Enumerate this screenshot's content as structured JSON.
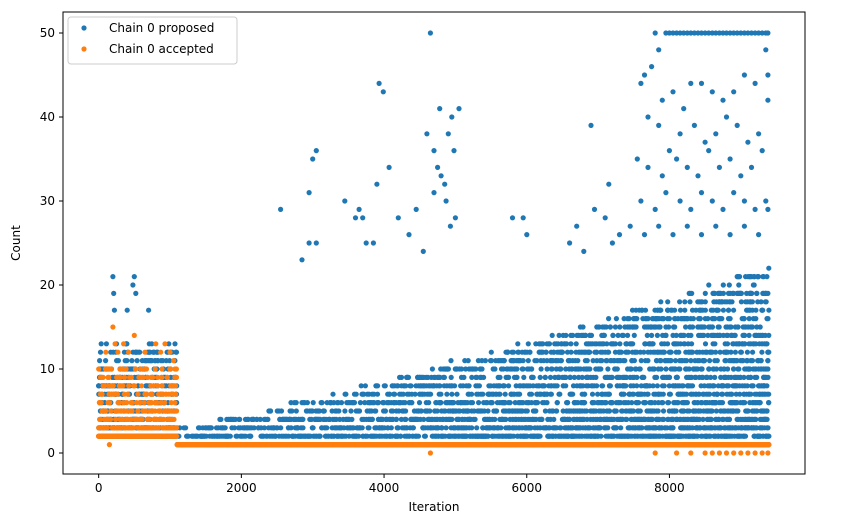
{
  "colors": {
    "proposed": "#1f77b4",
    "accepted": "#ff7f0e",
    "axis": "#000000",
    "legend_border": "#cccccc"
  },
  "chart_data": {
    "type": "scatter",
    "title": "",
    "xlabel": "Iteration",
    "ylabel": "Count",
    "xlim": [
      -500,
      9900
    ],
    "ylim": [
      -2.5,
      52.5
    ],
    "xticks": [
      0,
      2000,
      4000,
      6000,
      8000
    ],
    "yticks": [
      0,
      10,
      20,
      30,
      40,
      50
    ],
    "grid": false,
    "legend_position": "upper-left",
    "series": [
      {
        "name": "Chain 0 proposed",
        "color": "#1f77b4",
        "marker": "circle",
        "regions": [
          {
            "x_start": 0,
            "x_end": 1100,
            "base_min": 2,
            "base_max": 13
          },
          {
            "x_start": 1100,
            "x_end": 9400,
            "base_min": 1,
            "base_max_start": 3,
            "base_max_end": 22
          }
        ],
        "points": [
          [
            200,
            21
          ],
          [
            210,
            19
          ],
          [
            480,
            20
          ],
          [
            500,
            21
          ],
          [
            520,
            19
          ],
          [
            220,
            17
          ],
          [
            400,
            17
          ],
          [
            700,
            17
          ],
          [
            2550,
            29
          ],
          [
            2950,
            31
          ],
          [
            2950,
            25
          ],
          [
            3000,
            35
          ],
          [
            3050,
            36
          ],
          [
            3050,
            25
          ],
          [
            2850,
            23
          ],
          [
            3450,
            30
          ],
          [
            3600,
            28
          ],
          [
            3650,
            29
          ],
          [
            3700,
            28
          ],
          [
            3750,
            25
          ],
          [
            3850,
            25
          ],
          [
            3930,
            44
          ],
          [
            3990,
            43
          ],
          [
            4070,
            34
          ],
          [
            3900,
            32
          ],
          [
            4200,
            28
          ],
          [
            4350,
            26
          ],
          [
            4450,
            29
          ],
          [
            4550,
            24
          ],
          [
            4600,
            38
          ],
          [
            4650,
            50
          ],
          [
            4700,
            36
          ],
          [
            4750,
            34
          ],
          [
            4780,
            41
          ],
          [
            4800,
            33
          ],
          [
            4850,
            32
          ],
          [
            4900,
            38
          ],
          [
            4950,
            40
          ],
          [
            4980,
            36
          ],
          [
            5000,
            28
          ],
          [
            5050,
            41
          ],
          [
            4870,
            30
          ],
          [
            4930,
            27
          ],
          [
            4700,
            31
          ],
          [
            5800,
            28
          ],
          [
            5950,
            28
          ],
          [
            6000,
            26
          ],
          [
            6900,
            39
          ],
          [
            7150,
            32
          ],
          [
            7600,
            44
          ],
          [
            7650,
            45
          ],
          [
            7750,
            46
          ],
          [
            7800,
            50
          ],
          [
            7850,
            48
          ],
          [
            7950,
            50
          ],
          [
            8000,
            50
          ],
          [
            8050,
            50
          ],
          [
            8100,
            50
          ],
          [
            8150,
            50
          ],
          [
            8200,
            50
          ],
          [
            8250,
            50
          ],
          [
            8300,
            50
          ],
          [
            8350,
            50
          ],
          [
            8400,
            50
          ],
          [
            8450,
            50
          ],
          [
            8500,
            50
          ],
          [
            8550,
            50
          ],
          [
            8600,
            50
          ],
          [
            8650,
            50
          ],
          [
            8700,
            50
          ],
          [
            8750,
            50
          ],
          [
            8800,
            50
          ],
          [
            8850,
            50
          ],
          [
            8900,
            50
          ],
          [
            8950,
            50
          ],
          [
            9000,
            50
          ],
          [
            9050,
            50
          ],
          [
            9100,
            50
          ],
          [
            9150,
            50
          ],
          [
            9200,
            50
          ],
          [
            9250,
            50
          ],
          [
            9300,
            50
          ],
          [
            9350,
            50
          ],
          [
            9380,
            50
          ],
          [
            7900,
            42
          ],
          [
            8050,
            43
          ],
          [
            8200,
            41
          ],
          [
            8300,
            44
          ],
          [
            8450,
            44
          ],
          [
            8600,
            43
          ],
          [
            8750,
            42
          ],
          [
            8900,
            43
          ],
          [
            9050,
            45
          ],
          [
            9200,
            44
          ],
          [
            9350,
            48
          ],
          [
            9380,
            45
          ],
          [
            7700,
            40
          ],
          [
            7850,
            39
          ],
          [
            8000,
            36
          ],
          [
            8150,
            38
          ],
          [
            8350,
            39
          ],
          [
            8500,
            37
          ],
          [
            8650,
            38
          ],
          [
            8800,
            40
          ],
          [
            8950,
            39
          ],
          [
            9100,
            37
          ],
          [
            9250,
            38
          ],
          [
            9380,
            42
          ],
          [
            7550,
            35
          ],
          [
            7700,
            34
          ],
          [
            7900,
            33
          ],
          [
            8100,
            35
          ],
          [
            8250,
            34
          ],
          [
            8400,
            33
          ],
          [
            8550,
            36
          ],
          [
            8700,
            34
          ],
          [
            8850,
            35
          ],
          [
            9000,
            33
          ],
          [
            9150,
            34
          ],
          [
            9300,
            36
          ],
          [
            7600,
            30
          ],
          [
            7800,
            29
          ],
          [
            7950,
            31
          ],
          [
            8150,
            30
          ],
          [
            8300,
            29
          ],
          [
            8450,
            31
          ],
          [
            8600,
            30
          ],
          [
            8750,
            29
          ],
          [
            8900,
            31
          ],
          [
            9050,
            30
          ],
          [
            9200,
            29
          ],
          [
            9350,
            30
          ],
          [
            6700,
            27
          ],
          [
            6950,
            29
          ],
          [
            7100,
            28
          ],
          [
            7300,
            26
          ],
          [
            7450,
            27
          ],
          [
            7650,
            26
          ],
          [
            7850,
            27
          ],
          [
            8050,
            26
          ],
          [
            8250,
            27
          ],
          [
            8450,
            26
          ],
          [
            8650,
            27
          ],
          [
            8850,
            26
          ],
          [
            9050,
            27
          ],
          [
            9250,
            26
          ],
          [
            9380,
            29
          ],
          [
            6600,
            25
          ],
          [
            6800,
            24
          ],
          [
            7200,
            25
          ]
        ]
      },
      {
        "name": "Chain 0 accepted",
        "color": "#ff7f0e",
        "marker": "circle",
        "regions": [
          {
            "x_start": 0,
            "x_end": 1100,
            "base_min": 2,
            "base_max": 10
          },
          {
            "x_start": 1100,
            "x_end": 9400,
            "base_min": 1,
            "base_max": 1
          }
        ],
        "points": [
          [
            200,
            15
          ],
          [
            230,
            13
          ],
          [
            350,
            13
          ],
          [
            500,
            14
          ],
          [
            800,
            13
          ],
          [
            930,
            13
          ],
          [
            1000,
            12
          ],
          [
            50,
            3
          ],
          [
            100,
            2
          ],
          [
            150,
            1
          ],
          [
            300,
            3
          ],
          [
            450,
            2
          ],
          [
            600,
            3
          ],
          [
            750,
            2
          ],
          [
            900,
            3
          ],
          [
            100,
            12
          ],
          [
            270,
            12
          ],
          [
            420,
            12
          ],
          [
            650,
            12
          ],
          [
            870,
            12
          ],
          [
            1050,
            11
          ],
          [
            4650,
            0
          ],
          [
            7800,
            0
          ],
          [
            8100,
            0
          ],
          [
            8300,
            0
          ],
          [
            8500,
            0
          ],
          [
            8600,
            0
          ],
          [
            8700,
            0
          ],
          [
            8800,
            0
          ],
          [
            8900,
            0
          ],
          [
            9000,
            0
          ],
          [
            9100,
            0
          ],
          [
            9200,
            0
          ],
          [
            9300,
            0
          ],
          [
            9380,
            0
          ]
        ]
      }
    ]
  }
}
